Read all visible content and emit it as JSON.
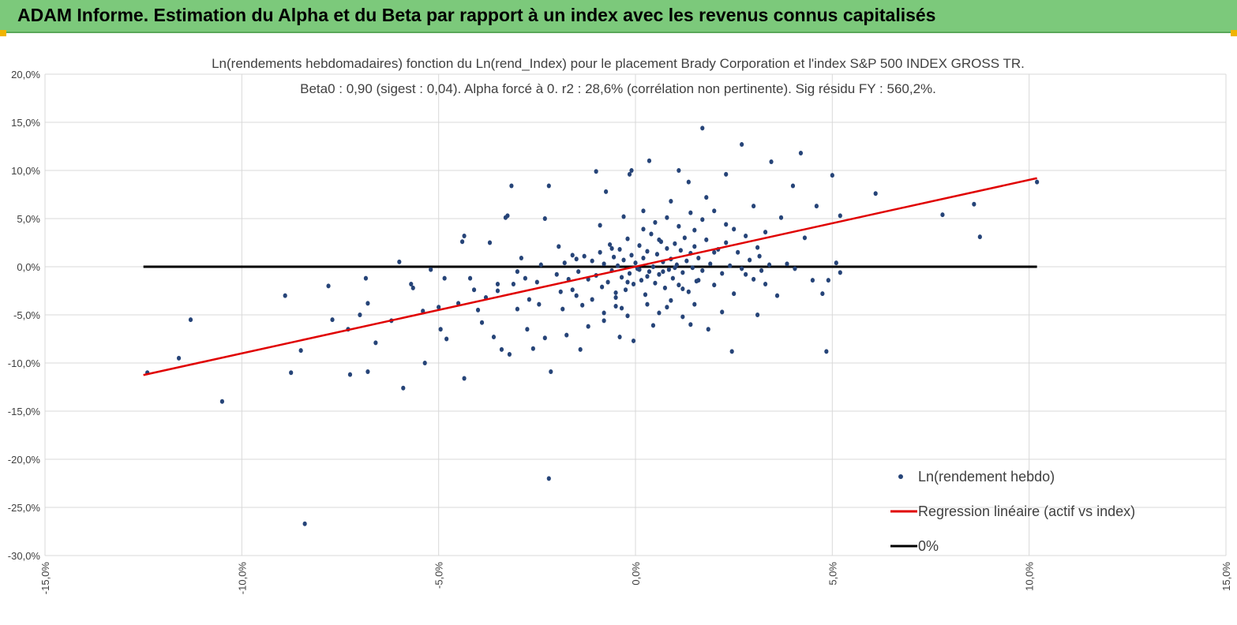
{
  "header": {
    "title": "ADAM Informe. Estimation du Alpha et du Beta par rapport à un index avec les revenus connus capitalisés"
  },
  "chart_data": {
    "type": "scatter",
    "title": "Ln(rendements hebdomadaires) fonction du Ln(rend_Index) pour le placement Brady Corporation et l'index S&P 500 INDEX GROSS TR.",
    "subtitle": "Beta0 : 0,90 (sigest : 0,04). Alpha forcé à 0. r2 : 28,6% (corrélation non pertinente). Sig résidu FY : 560,2%.",
    "xlim": [
      -15,
      15
    ],
    "ylim": [
      -30,
      20
    ],
    "x_ticks": [
      -15,
      -10,
      -5,
      0,
      5,
      10,
      15
    ],
    "y_ticks": [
      20,
      15,
      10,
      5,
      0,
      -5,
      -10,
      -15,
      -20,
      -25,
      -30
    ],
    "x_tick_labels": [
      "-15,0%",
      "-10,0%",
      "-5,0%",
      "0,0%",
      "5,0%",
      "10,0%",
      "15,0%"
    ],
    "y_tick_labels": [
      "20,0%",
      "15,0%",
      "10,0%",
      "5,0%",
      "0,0%",
      "-5,0%",
      "-10,0%",
      "-15,0%",
      "-20,0%",
      "-25,0%",
      "-30,0%"
    ],
    "grid": true,
    "legend_position": "bottom-right",
    "colors": {
      "points": "#264478",
      "regression": "#e00000",
      "zero": "#000000",
      "header_bg": "#7cc97b",
      "corner": "#f0b400"
    },
    "series": [
      {
        "name": "Ln(rendement hebdo)",
        "kind": "scatter",
        "points": [
          [
            -12.4,
            -11.0
          ],
          [
            -11.6,
            -9.5
          ],
          [
            -11.3,
            -5.5
          ],
          [
            -10.5,
            -14.0
          ],
          [
            -8.9,
            -3.0
          ],
          [
            -8.75,
            -11.0
          ],
          [
            -8.5,
            -8.7
          ],
          [
            -8.4,
            -26.7
          ],
          [
            -7.8,
            -2.0
          ],
          [
            -7.7,
            -5.5
          ],
          [
            -7.3,
            -6.5
          ],
          [
            -7.25,
            -11.2
          ],
          [
            -7.0,
            -5.0
          ],
          [
            -6.85,
            -1.2
          ],
          [
            -6.8,
            -3.8
          ],
          [
            -6.8,
            -10.9
          ],
          [
            -6.6,
            -7.9
          ],
          [
            -6.2,
            -5.6
          ],
          [
            -6.0,
            0.5
          ],
          [
            -5.9,
            -12.6
          ],
          [
            -5.7,
            -1.8
          ],
          [
            -5.65,
            -2.2
          ],
          [
            -5.4,
            -4.6
          ],
          [
            -5.35,
            -10.0
          ],
          [
            -5.2,
            -0.3
          ],
          [
            -5.0,
            -4.2
          ],
          [
            -4.95,
            -6.5
          ],
          [
            -4.85,
            -1.2
          ],
          [
            -4.8,
            -7.5
          ],
          [
            -4.5,
            -3.8
          ],
          [
            -4.4,
            2.6
          ],
          [
            -4.35,
            3.2
          ],
          [
            -4.35,
            -11.6
          ],
          [
            -4.2,
            -1.2
          ],
          [
            -4.0,
            -4.5
          ],
          [
            -3.9,
            -5.8
          ],
          [
            -3.7,
            2.5
          ],
          [
            -3.6,
            -7.3
          ],
          [
            -3.5,
            -2.5
          ],
          [
            -3.4,
            -8.6
          ],
          [
            -3.3,
            5.1
          ],
          [
            -3.25,
            5.3
          ],
          [
            -3.2,
            -9.1
          ],
          [
            -3.15,
            8.4
          ],
          [
            -3.1,
            -1.8
          ],
          [
            -3.0,
            -0.5
          ],
          [
            -2.9,
            0.9
          ],
          [
            -2.75,
            -6.5
          ],
          [
            -2.6,
            -8.5
          ],
          [
            -2.45,
            -3.9
          ],
          [
            -2.3,
            -7.4
          ],
          [
            -2.3,
            5.0
          ],
          [
            -2.2,
            8.4
          ],
          [
            -2.2,
            -22.0
          ],
          [
            -2.15,
            -10.9
          ],
          [
            -1.95,
            2.1
          ],
          [
            -1.85,
            -4.4
          ],
          [
            -1.75,
            -7.1
          ],
          [
            -1.6,
            -2.4
          ],
          [
            -1.5,
            0.8
          ],
          [
            -1.4,
            -8.6
          ],
          [
            -1.2,
            -6.2
          ],
          [
            -1.1,
            -3.4
          ],
          [
            -1.0,
            9.9
          ],
          [
            -0.9,
            4.3
          ],
          [
            -0.8,
            -4.8
          ],
          [
            -0.75,
            7.8
          ],
          [
            -0.6,
            1.9
          ],
          [
            -0.5,
            -2.7
          ],
          [
            -0.4,
            -7.3
          ],
          [
            -0.35,
            -4.3
          ],
          [
            -0.3,
            5.2
          ],
          [
            -0.2,
            -1.6
          ],
          [
            -0.15,
            9.6
          ],
          [
            -0.1,
            10.0
          ],
          [
            -0.05,
            -7.7
          ],
          [
            0.1,
            -0.3
          ],
          [
            0.2,
            5.8
          ],
          [
            0.3,
            -1.0
          ],
          [
            0.35,
            11.0
          ],
          [
            0.45,
            -6.1
          ],
          [
            0.6,
            2.8
          ],
          [
            0.7,
            -0.5
          ],
          [
            0.8,
            -4.2
          ],
          [
            0.9,
            6.8
          ],
          [
            1.0,
            -0.1
          ],
          [
            1.1,
            10.0
          ],
          [
            1.2,
            -2.3
          ],
          [
            1.35,
            8.8
          ],
          [
            1.4,
            -6.0
          ],
          [
            1.5,
            3.8
          ],
          [
            1.6,
            -1.4
          ],
          [
            1.7,
            14.4
          ],
          [
            1.8,
            7.2
          ],
          [
            1.85,
            -6.5
          ],
          [
            2.0,
            1.5
          ],
          [
            2.2,
            -4.7
          ],
          [
            2.3,
            9.6
          ],
          [
            2.45,
            -8.8
          ],
          [
            2.5,
            3.9
          ],
          [
            2.7,
            12.7
          ],
          [
            2.8,
            -0.8
          ],
          [
            3.0,
            6.3
          ],
          [
            3.1,
            -5.0
          ],
          [
            3.15,
            1.1
          ],
          [
            3.3,
            -1.8
          ],
          [
            3.45,
            10.9
          ],
          [
            3.6,
            -3.0
          ],
          [
            3.7,
            5.1
          ],
          [
            3.85,
            0.3
          ],
          [
            4.0,
            8.4
          ],
          [
            4.05,
            -0.2
          ],
          [
            4.2,
            11.8
          ],
          [
            4.3,
            3.0
          ],
          [
            4.5,
            -1.4
          ],
          [
            4.6,
            6.3
          ],
          [
            4.75,
            -2.8
          ],
          [
            4.85,
            -8.8
          ],
          [
            4.9,
            -1.4
          ],
          [
            5.0,
            9.5
          ],
          [
            5.1,
            0.4
          ],
          [
            5.2,
            -0.6
          ],
          [
            5.2,
            5.3
          ],
          [
            6.1,
            7.6
          ],
          [
            7.8,
            5.4
          ],
          [
            8.6,
            6.5
          ],
          [
            8.75,
            3.1
          ],
          [
            10.2,
            8.8
          ],
          [
            -1.3,
            1.1
          ],
          [
            -1.2,
            -1.3
          ],
          [
            -1.1,
            0.6
          ],
          [
            -1.0,
            -0.9
          ],
          [
            -0.9,
            1.5
          ],
          [
            -0.85,
            -2.1
          ],
          [
            -0.8,
            0.3
          ],
          [
            -0.7,
            -1.6
          ],
          [
            -0.65,
            2.3
          ],
          [
            -0.6,
            -0.4
          ],
          [
            -0.55,
            1.0
          ],
          [
            -0.5,
            -3.2
          ],
          [
            -0.45,
            0.1
          ],
          [
            -0.4,
            1.8
          ],
          [
            -0.35,
            -1.1
          ],
          [
            -0.3,
            0.7
          ],
          [
            -0.25,
            -2.4
          ],
          [
            -0.2,
            2.9
          ],
          [
            -0.15,
            -0.7
          ],
          [
            -0.1,
            1.2
          ],
          [
            -0.05,
            -1.8
          ],
          [
            0.0,
            0.4
          ],
          [
            0.05,
            -0.2
          ],
          [
            0.1,
            2.2
          ],
          [
            0.15,
            -1.4
          ],
          [
            0.2,
            0.9
          ],
          [
            0.25,
            -2.9
          ],
          [
            0.3,
            1.6
          ],
          [
            0.35,
            -0.5
          ],
          [
            0.4,
            3.4
          ],
          [
            0.45,
            0.0
          ],
          [
            0.5,
            -1.7
          ],
          [
            0.55,
            1.3
          ],
          [
            0.6,
            -0.8
          ],
          [
            0.65,
            2.6
          ],
          [
            0.7,
            0.5
          ],
          [
            0.75,
            -2.2
          ],
          [
            0.8,
            1.9
          ],
          [
            0.85,
            -0.3
          ],
          [
            0.9,
            0.8
          ],
          [
            0.95,
            -1.2
          ],
          [
            1.0,
            2.4
          ],
          [
            1.05,
            0.2
          ],
          [
            1.1,
            -1.9
          ],
          [
            1.15,
            1.7
          ],
          [
            1.2,
            -0.6
          ],
          [
            1.25,
            3.0
          ],
          [
            1.3,
            0.6
          ],
          [
            1.35,
            -2.6
          ],
          [
            1.4,
            1.4
          ],
          [
            1.45,
            -0.1
          ],
          [
            1.5,
            2.1
          ],
          [
            1.55,
            -1.5
          ],
          [
            1.6,
            0.9
          ],
          [
            1.7,
            -0.4
          ],
          [
            1.8,
            2.8
          ],
          [
            1.9,
            0.3
          ],
          [
            2.0,
            -1.9
          ],
          [
            2.1,
            1.8
          ],
          [
            2.2,
            -0.7
          ],
          [
            2.3,
            2.5
          ],
          [
            2.4,
            0.1
          ],
          [
            2.5,
            -2.8
          ],
          [
            2.6,
            1.5
          ],
          [
            2.7,
            -0.2
          ],
          [
            2.8,
            3.2
          ],
          [
            2.9,
            0.7
          ],
          [
            3.0,
            -1.3
          ],
          [
            3.1,
            2.0
          ],
          [
            3.2,
            -0.4
          ],
          [
            3.3,
            3.6
          ],
          [
            3.4,
            0.2
          ],
          [
            -2.0,
            -0.8
          ],
          [
            -1.9,
            -2.6
          ],
          [
            -1.8,
            0.4
          ],
          [
            -1.7,
            -1.3
          ],
          [
            -1.6,
            1.2
          ],
          [
            -1.5,
            -3.0
          ],
          [
            -1.45,
            -0.5
          ],
          [
            -1.35,
            -4.0
          ],
          [
            -2.5,
            -1.6
          ],
          [
            -2.4,
            0.2
          ],
          [
            -2.7,
            -3.4
          ],
          [
            -2.8,
            -1.2
          ],
          [
            -3.0,
            -4.4
          ],
          [
            -3.5,
            -1.8
          ],
          [
            -3.8,
            -3.2
          ],
          [
            -4.1,
            -2.4
          ],
          [
            0.2,
            3.9
          ],
          [
            0.5,
            4.6
          ],
          [
            0.8,
            5.1
          ],
          [
            1.1,
            4.2
          ],
          [
            1.4,
            5.6
          ],
          [
            1.7,
            4.9
          ],
          [
            2.0,
            5.8
          ],
          [
            2.3,
            4.4
          ],
          [
            0.3,
            -3.9
          ],
          [
            0.6,
            -4.8
          ],
          [
            0.9,
            -3.5
          ],
          [
            1.2,
            -5.2
          ],
          [
            1.5,
            -3.9
          ],
          [
            -0.2,
            -5.1
          ],
          [
            -0.5,
            -4.1
          ],
          [
            -0.8,
            -5.6
          ]
        ]
      },
      {
        "name": "Regression linéaire (actif vs index)",
        "kind": "line",
        "points": [
          [
            -12.5,
            -11.25
          ],
          [
            10.2,
            9.2
          ]
        ]
      },
      {
        "name": "0%",
        "kind": "line",
        "points": [
          [
            -12.5,
            0.0
          ],
          [
            10.2,
            0.0
          ]
        ]
      }
    ]
  }
}
